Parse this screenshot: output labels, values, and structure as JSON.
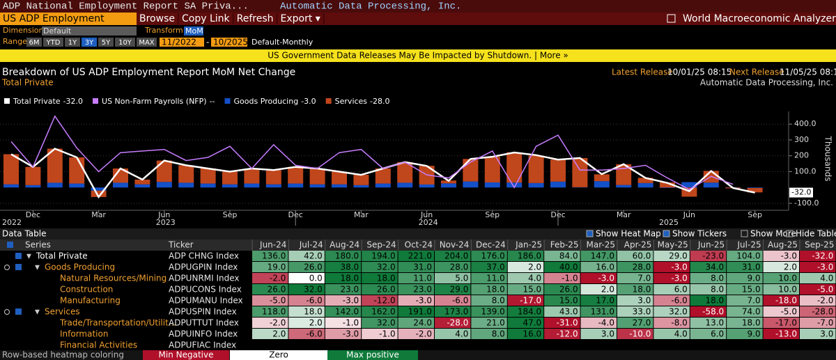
{
  "header": {
    "title": "ADP National Employment Report SA Priva...",
    "source": "Automatic Data Processing, Inc."
  },
  "toolbar": {
    "security": "US ADP Employment",
    "menu": [
      "Browse",
      "Copy Link",
      "Refresh",
      "Export ▾"
    ],
    "app": "World Macroeconomic Analyzer"
  },
  "controls": {
    "dimension_label": "Dimension",
    "dimension": "Default",
    "transform_label": "Transform",
    "transform": "MoM",
    "range_label": "Range",
    "ranges": [
      "6M",
      "YTD",
      "1Y",
      "3Y",
      "5Y",
      "10Y",
      "MAX"
    ],
    "selected_range": "3Y",
    "start": "11/2022",
    "dash": "-",
    "end": "10/2025",
    "frequency": "Default-Monthly"
  },
  "banner": "US Government Data Releases May Be Impacted by Shutdown. | More »",
  "chart": {
    "type": "bar",
    "title": "Breakdown of US ADP Employment Report MoM Net Change",
    "subtitle": "Total Private",
    "latest_label": "Latest Release",
    "latest": "10/01/25 08:15",
    "next_label": "Next Release",
    "next": "11/05/25 08:15",
    "source": "Automatic Data Processing, Inc.",
    "y_label": "Thousands",
    "categories": [
      null,
      "Dec",
      null,
      null,
      "Mar",
      null,
      null,
      "Jun",
      null,
      null,
      "Sep",
      null,
      null,
      "Dec",
      null,
      null,
      "Mar",
      null,
      null,
      "Jun",
      null,
      null,
      "Sep",
      null,
      null,
      "Dec",
      null,
      null,
      "Mar",
      null,
      null,
      "Jun",
      null,
      null,
      "Sep"
    ],
    "years": [
      "2022",
      "2023",
      "2024",
      "2025"
    ],
    "ylim": [
      -135,
      480
    ],
    "yticks": [
      {
        "value": 400,
        "label": "400.0"
      },
      300,
      200,
      {
        "value": 100,
        "label": "100.0"
      },
      {
        "value": -100,
        "label": "-100.0"
      }
    ],
    "grid": true,
    "current_value_label": "-32.0",
    "series": [
      {
        "name": "Total Private",
        "legend_value": "-32.0",
        "type": "line",
        "color": "#ffffff",
        "values": [
          210,
          130,
          245,
          190,
          -60,
          120,
          50,
          170,
          140,
          120,
          100,
          120,
          110,
          130,
          120,
          100,
          80,
          120,
          160,
          136,
          42,
          180,
          194,
          221,
          204,
          176,
          186,
          84,
          147,
          60,
          29,
          -23,
          104,
          -3,
          -32
        ]
      },
      {
        "name": "US Non-Farm Payrolls (NFP)",
        "legend_value": "--",
        "type": "line",
        "color": "#c77dff",
        "values": [
          290,
          130,
          450,
          250,
          100,
          220,
          230,
          240,
          170,
          190,
          260,
          120,
          270,
          140,
          120,
          220,
          240,
          120,
          160,
          80,
          60,
          160,
          230,
          0,
          260,
          330,
          110,
          110,
          120,
          140,
          60,
          -13,
          70,
          20,
          null
        ]
      },
      {
        "name": "Goods Producing",
        "legend_value": "-3.0",
        "type": "bar",
        "color": "#1450c8",
        "values": [
          20,
          15,
          30,
          25,
          -20,
          30,
          20,
          35,
          30,
          25,
          20,
          25,
          20,
          25,
          20,
          20,
          15,
          25,
          30,
          19,
          26,
          38,
          32,
          31,
          28,
          37,
          2,
          40,
          16,
          28,
          -3,
          34,
          31,
          2,
          -3
        ]
      },
      {
        "name": "Services",
        "legend_value": "-28.0",
        "type": "bar",
        "color": "#c0461c",
        "values": [
          190,
          115,
          215,
          165,
          -40,
          90,
          30,
          135,
          110,
          95,
          80,
          95,
          90,
          105,
          100,
          80,
          65,
          95,
          130,
          118,
          18,
          142,
          162,
          191,
          173,
          139,
          184,
          43,
          131,
          33,
          32,
          -58,
          74,
          -5,
          -28
        ]
      }
    ]
  },
  "table": {
    "title": "Data Table",
    "buttons": [
      "Show Heat Map",
      "Show Tickers",
      "Show More",
      "Hide Table"
    ],
    "columns": [
      "Series",
      "Ticker",
      "Jun-24",
      "Jul-24",
      "Aug-24",
      "Sep-24",
      "Oct-24",
      "Nov-24",
      "Dec-24",
      "Jan-25",
      "Feb-25",
      "Mar-25",
      "Apr-25",
      "May-25",
      "Jun-25",
      "Jul-25",
      "Aug-25",
      "Sep-25"
    ],
    "rows": [
      {
        "series": "Total Private",
        "ticker": "ADP CHNG Index",
        "values": [
          "136.0",
          "42.0",
          "180.0",
          "194.0",
          "221.0",
          "204.0",
          "176.0",
          "186.0",
          "84.0",
          "147.0",
          "60.0",
          "29.0",
          "-23.0",
          "104.0",
          "-3.0",
          "-32.0"
        ]
      },
      {
        "series": "Goods Producing",
        "ticker": "ADPUGPIN Index",
        "values": [
          "19.0",
          "26.0",
          "38.0",
          "32.0",
          "31.0",
          "28.0",
          "37.0",
          "2.0",
          "40.0",
          "16.0",
          "28.0",
          "-3.0",
          "34.0",
          "31.0",
          "2.0",
          "-3.0"
        ]
      },
      {
        "series": "Natural Resources/Mining",
        "ticker": "ADPUNRMI Index",
        "values": [
          "-2.0",
          "0.0",
          "18.0",
          "18.0",
          "11.0",
          "5.0",
          "11.0",
          "4.0",
          "-1.0",
          "-3.0",
          "7.0",
          "-3.0",
          "8.0",
          "9.0",
          "10.0",
          "4.0"
        ]
      },
      {
        "series": "Construction",
        "ticker": "ADPUCONS Index",
        "values": [
          "26.0",
          "32.0",
          "23.0",
          "26.0",
          "23.0",
          "29.0",
          "18.0",
          "15.0",
          "26.0",
          "2.0",
          "18.0",
          "6.0",
          "8.0",
          "15.0",
          "10.0",
          "-5.0"
        ]
      },
      {
        "series": "Manufacturing",
        "ticker": "ADPUMANU Index",
        "values": [
          "-5.0",
          "-6.0",
          "-3.0",
          "-12.0",
          "-3.0",
          "-6.0",
          "8.0",
          "-17.0",
          "15.0",
          "17.0",
          "3.0",
          "-6.0",
          "18.0",
          "7.0",
          "-18.0",
          "-2.0"
        ]
      },
      {
        "series": "Services",
        "ticker": "ADPUSPIN Index",
        "values": [
          "118.0",
          "18.0",
          "142.0",
          "162.0",
          "191.0",
          "173.0",
          "139.0",
          "184.0",
          "43.0",
          "131.0",
          "33.0",
          "32.0",
          "-58.0",
          "74.0",
          "-5.0",
          "-28.0"
        ]
      },
      {
        "series": "Trade/Transportation/Utilit...",
        "ticker": "ADPUTTUT Index",
        "values": [
          "-2.0",
          "2.0",
          "-1.0",
          "32.0",
          "24.0",
          "-28.0",
          "21.0",
          "47.0",
          "-31.0",
          "-4.0",
          "27.0",
          "-8.0",
          "13.0",
          "18.0",
          "-17.0",
          "-7.0"
        ]
      },
      {
        "series": "Information",
        "ticker": "ADPUINFO Index",
        "values": [
          "2.0",
          "-6.0",
          "-3.0",
          "-1.0",
          "-2.0",
          "4.0",
          "8.0",
          "16.0",
          "-12.0",
          "3.0",
          "-10.0",
          "4.0",
          "6.0",
          "9.0",
          "-13.0",
          "3.0"
        ]
      },
      {
        "series": "Financial Activities",
        "ticker": "ADPUFIAC Index",
        "values": []
      }
    ]
  },
  "footer": {
    "note": "Row-based heatmap coloring",
    "min": "Min Negative",
    "zero": "Zero",
    "max": "Max positive"
  }
}
